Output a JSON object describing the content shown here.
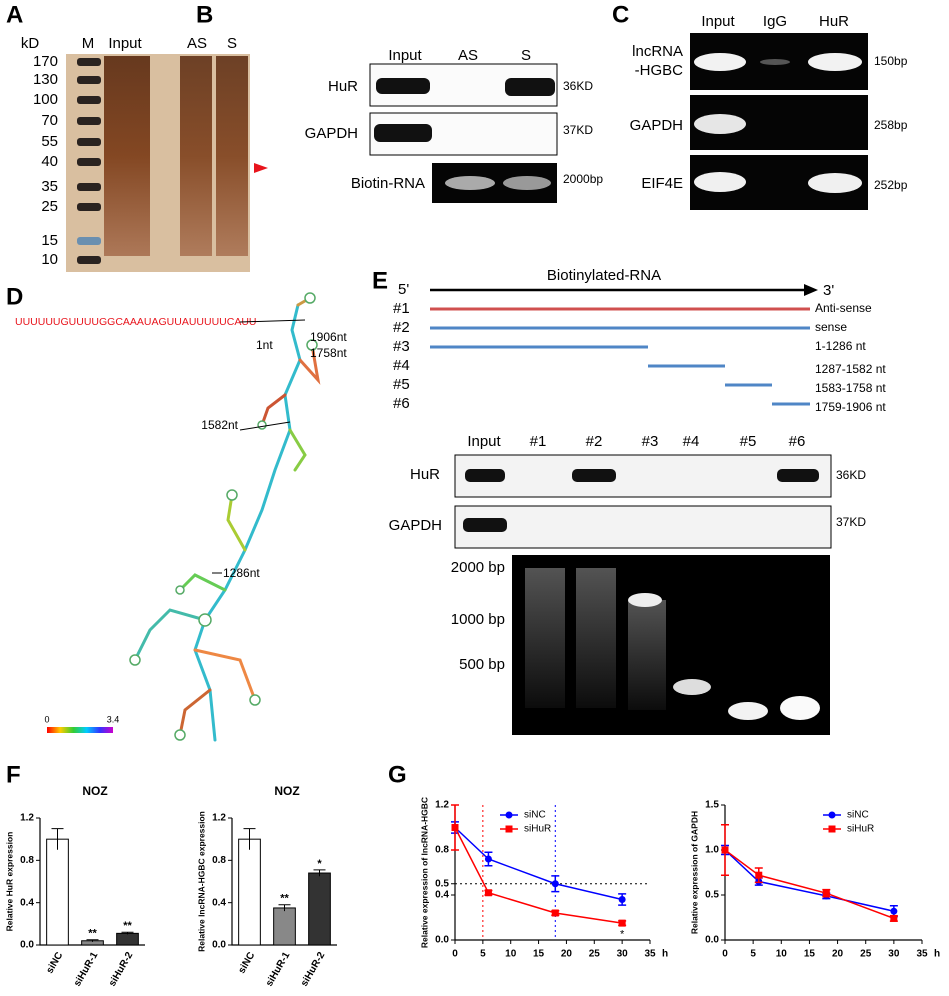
{
  "panels": {
    "A": {
      "label": "A",
      "unit": "kD",
      "lanes": [
        "M",
        "Input",
        "AS",
        "S"
      ],
      "markers": [
        "170",
        "130",
        "100",
        "70",
        "55",
        "40",
        "35",
        "25",
        "15",
        "10"
      ]
    },
    "B": {
      "label": "B",
      "lanes": [
        "Input",
        "AS",
        "S"
      ],
      "rows": [
        "HuR",
        "GAPDH",
        "Biotin-RNA"
      ],
      "sizes": [
        "36KD",
        "37KD",
        "2000bp"
      ]
    },
    "C": {
      "label": "C",
      "lanes": [
        "Input",
        "IgG",
        "HuR"
      ],
      "rows": [
        [
          "lncRNA",
          "-HGBC"
        ],
        [
          "GAPDH"
        ],
        [
          "EIF4E"
        ]
      ],
      "sizes": [
        "150bp",
        "258bp",
        "252bp"
      ]
    },
    "D": {
      "label": "D",
      "sequence": "UUUUUUGUUUUGGCAAAUAGUUAUUUUUCAUU",
      "positions": [
        "1nt",
        "1906nt",
        "1758nt",
        "1582nt",
        "1286nt"
      ],
      "scale": [
        "0",
        "3.4"
      ]
    },
    "E": {
      "label": "E",
      "ends": [
        "5'",
        "3'"
      ],
      "arrow_label": "Biotinylated-RNA",
      "constructs": [
        {
          "id": "#1",
          "desc": "Anti-sense"
        },
        {
          "id": "#2",
          "desc": "sense"
        },
        {
          "id": "#3",
          "desc": "1-1286 nt"
        },
        {
          "id": "#4",
          "desc": "1287-1582 nt"
        },
        {
          "id": "#5",
          "desc": "1583-1758 nt"
        },
        {
          "id": "#6",
          "desc": "1759-1906 nt"
        }
      ],
      "lanes": [
        "Input",
        "#1",
        "#2",
        "#3",
        "#4",
        "#5",
        "#6"
      ],
      "rows": [
        "HuR",
        "GAPDH"
      ],
      "sizes": [
        "36KD",
        "37KD"
      ],
      "ladder": [
        "2000 bp",
        "1000 bp",
        "500 bp"
      ]
    },
    "F": {
      "label": "F"
    },
    "G": {
      "label": "G"
    }
  },
  "chart_data": [
    {
      "type": "bar",
      "title": "NOZ",
      "y_label": "Relative HuR expression",
      "categories": [
        "siNC",
        "siHuR-1",
        "siHuR-2"
      ],
      "values": [
        1.0,
        0.04,
        0.11
      ],
      "errors": [
        0.1,
        0.01,
        0.01
      ],
      "significance": [
        null,
        "**",
        "**"
      ],
      "colors": [
        "#ffffff",
        "#888888",
        "#333333"
      ],
      "ylim": [
        0,
        1.2
      ],
      "yticks": [
        {
          "value": 0,
          "label": "0.0"
        },
        0.4,
        0.8,
        1.2
      ]
    },
    {
      "type": "bar",
      "title": "NOZ",
      "y_label": "Relative lncRNA-HGBC expression",
      "categories": [
        "siNC",
        "siHuR-1",
        "siHuR-2"
      ],
      "values": [
        1.0,
        0.35,
        0.68
      ],
      "errors": [
        0.1,
        0.03,
        0.03
      ],
      "significance": [
        null,
        "**",
        "*"
      ],
      "colors": [
        "#ffffff",
        "#888888",
        "#333333"
      ],
      "ylim": [
        0,
        1.2
      ],
      "yticks": [
        {
          "value": 0,
          "label": "0.0"
        },
        0.4,
        0.8,
        1.2
      ]
    },
    {
      "type": "line",
      "y_label": "Relative expression of lncRNA-HGBC",
      "x_label": "h",
      "x": [
        0,
        6,
        18,
        30
      ],
      "series": [
        {
          "name": "siNC",
          "color": "#0000ff",
          "marker": "circle",
          "values": [
            1.0,
            0.72,
            0.5,
            0.36
          ],
          "errors": [
            0.05,
            0.06,
            0.07,
            0.05
          ]
        },
        {
          "name": "siHuR",
          "color": "#ff0000",
          "marker": "square",
          "values": [
            1.0,
            0.42,
            0.24,
            0.15
          ],
          "errors": [
            0.2,
            0.02,
            0.02,
            0.02
          ],
          "significance": [
            null,
            null,
            null,
            "*"
          ]
        }
      ],
      "reference_lines": [
        {
          "axis": "y",
          "value": 0.5,
          "color": "#000000"
        },
        {
          "axis": "x",
          "value": 5,
          "color": "#ff0000"
        },
        {
          "axis": "x",
          "value": 18,
          "color": "#0000ff"
        }
      ],
      "xlim": [
        0,
        35
      ],
      "xticks": [
        0,
        5,
        10,
        15,
        20,
        25,
        30,
        35
      ],
      "ylim": [
        0,
        1.2
      ],
      "yticks": [
        {
          "value": 0,
          "label": "0.0"
        },
        0.4,
        0.5,
        0.8,
        1.2
      ]
    },
    {
      "type": "line",
      "y_label": "Relative expression of GAPDH",
      "x_label": "h",
      "x": [
        0,
        6,
        18,
        30
      ],
      "series": [
        {
          "name": "siNC",
          "color": "#0000ff",
          "marker": "circle",
          "values": [
            1.0,
            0.65,
            0.49,
            0.32
          ],
          "errors": [
            0.05,
            0.04,
            0.03,
            0.06
          ]
        },
        {
          "name": "siHuR",
          "color": "#ff0000",
          "marker": "square",
          "values": [
            1.0,
            0.72,
            0.52,
            0.24
          ],
          "errors": [
            0.28,
            0.08,
            0.04,
            0.03
          ]
        }
      ],
      "xlim": [
        0,
        35
      ],
      "xticks": [
        0,
        5,
        10,
        15,
        20,
        25,
        30,
        35
      ],
      "ylim": [
        0,
        1.5
      ],
      "yticks": [
        {
          "value": 0,
          "label": "0.0"
        },
        0.5,
        {
          "value": 1,
          "label": "1.0"
        },
        1.5
      ]
    }
  ]
}
